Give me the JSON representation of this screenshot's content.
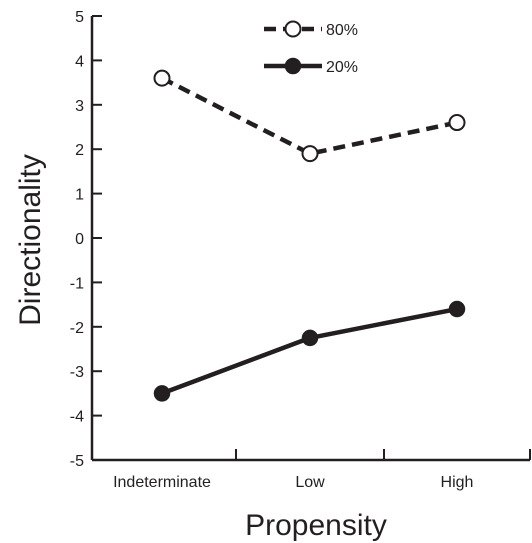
{
  "chart_data": {
    "type": "line",
    "title": "",
    "xlabel": "Propensity",
    "ylabel": "Directionality",
    "categories": [
      "Indeterminate",
      "Low",
      "High"
    ],
    "ylim": [
      -5,
      5
    ],
    "yticks": [
      "5",
      "4",
      "3",
      "2",
      "1",
      "0",
      "-1",
      "-2",
      "-3",
      "-4",
      "-5"
    ],
    "grid": false,
    "legend_position": "top-center",
    "series": [
      {
        "name": "80%",
        "values": [
          3.6,
          1.9,
          2.6
        ],
        "line_style": "dashed",
        "marker": "open-circle",
        "color": "#231f20"
      },
      {
        "name": "20%",
        "values": [
          -3.5,
          -2.25,
          -1.6
        ],
        "line_style": "solid",
        "marker": "filled-circle",
        "color": "#231f20"
      }
    ]
  }
}
